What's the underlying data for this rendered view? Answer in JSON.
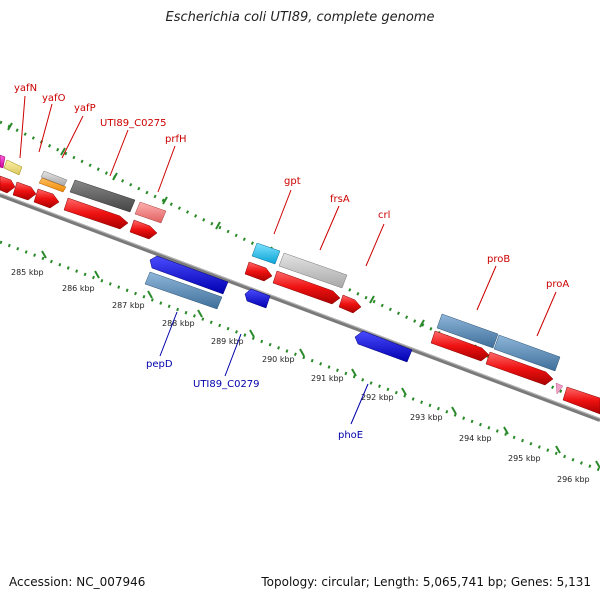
{
  "title": "Escherichia coli UTI89, complete genome",
  "footer": {
    "accession": "Accession: NC_007946",
    "topology": "Topology: circular; Length: 5,065,741 bp; Genes: 5,131"
  },
  "colors": {
    "forward_label": "#cc0000",
    "reverse_label": "#0000aa",
    "tick": "#2a8a2a",
    "backbone": "#808080"
  },
  "kbp_ticks": [
    "285 kbp",
    "286 kbp",
    "287 kbp",
    "288 kbp",
    "289 kbp",
    "290 kbp",
    "291 kbp",
    "292 kbp",
    "293 kbp",
    "294 kbp",
    "295 kbp",
    "296 kbp"
  ],
  "gene_labels_forward": [
    "yafN",
    "yafO",
    "yafP",
    "UTI89_C0275",
    "prfH",
    "gpt",
    "frsA",
    "crl",
    "proB",
    "proA"
  ],
  "gene_labels_reverse": [
    "pepD",
    "UTI89_C0279",
    "phoE"
  ]
}
